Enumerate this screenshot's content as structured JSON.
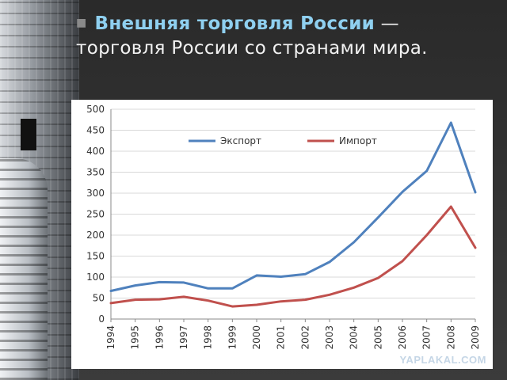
{
  "slide": {
    "title_accent": "Внешняя торговля России",
    "title_rest": " — торговля России со странами мира."
  },
  "watermark": "YAPLAKAL.COM",
  "colors": {
    "export": "#4f81bd",
    "import": "#c0504d",
    "accent": "#8fd0f0"
  },
  "chart_data": {
    "type": "line",
    "x": [
      "1994",
      "1995",
      "1996",
      "1997",
      "1998",
      "1999",
      "2000",
      "2001",
      "2002",
      "2003",
      "2004",
      "2005",
      "2006",
      "2007",
      "2008",
      "2009"
    ],
    "series": [
      {
        "name": "Экспорт",
        "values": [
          67,
          80,
          88,
          87,
          73,
          73,
          104,
          101,
          107,
          136,
          183,
          242,
          303,
          353,
          468,
          302
        ]
      },
      {
        "name": "Импорт",
        "values": [
          38,
          46,
          47,
          53,
          44,
          30,
          34,
          42,
          46,
          58,
          75,
          98,
          138,
          200,
          268,
          170
        ]
      }
    ],
    "ylim": [
      0,
      500
    ],
    "yticks": [
      0,
      50,
      100,
      150,
      200,
      250,
      300,
      350,
      400,
      450,
      500
    ],
    "grid": true,
    "legend": "top-center"
  }
}
